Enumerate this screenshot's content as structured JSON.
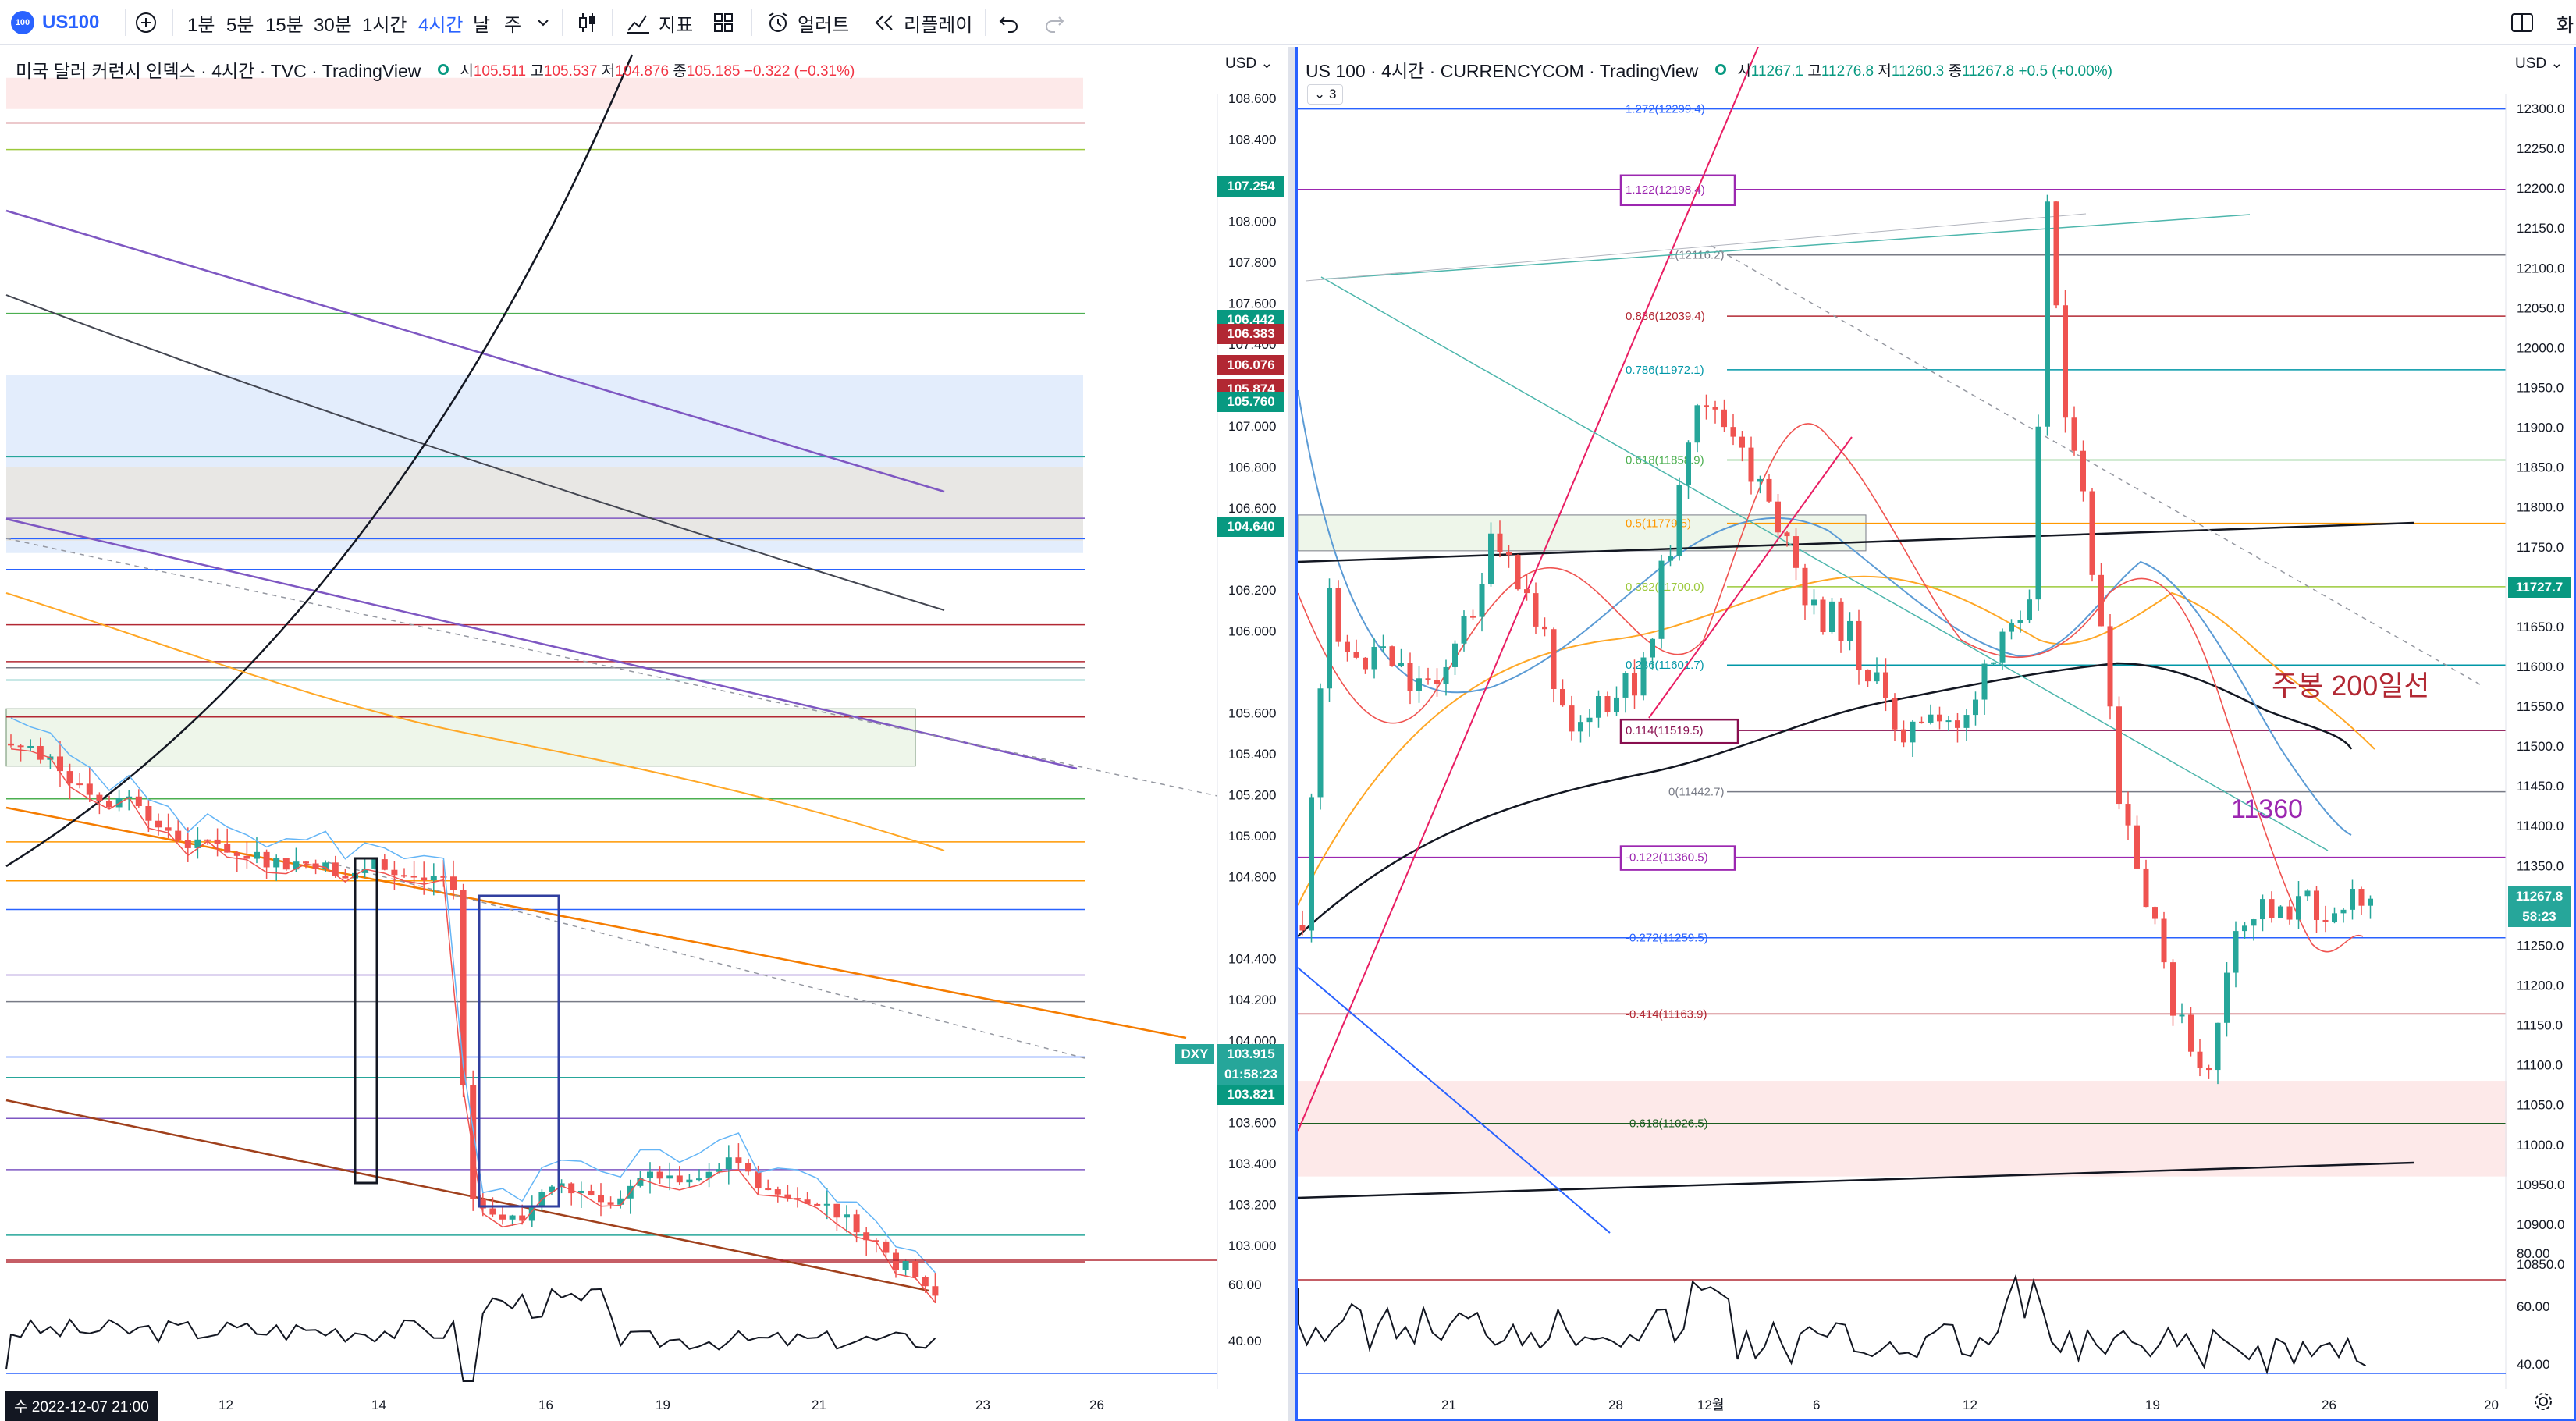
{
  "toolbar": {
    "logo_text": "100",
    "symbol": "US100",
    "intervals": [
      "1분",
      "5분",
      "15분",
      "30분",
      "1시간",
      "4시간",
      "날",
      "주"
    ],
    "active_interval": "4시간",
    "indicators_label": "지표",
    "alerts_label": "얼러트",
    "replay_label": "리플레이",
    "right_cut_label": "화"
  },
  "left_chart": {
    "title": "미국 달러 커런시 인덱스 · 4시간 · TVC · TradingView",
    "ohlc": {
      "o_label": "시",
      "o": "105.511",
      "h_label": "고",
      "h": "105.537",
      "l_label": "저",
      "l": "104.876",
      "c_label": "종",
      "c": "105.185",
      "change": "−0.322 (−0.31%)"
    },
    "currency": "USD",
    "price_ticks": [
      "108.600",
      "108.400",
      "108.200",
      "108.000",
      "107.800",
      "107.600",
      "107.400",
      "107.000",
      "106.800",
      "106.600",
      "106.200",
      "106.000",
      "105.600",
      "105.400",
      "105.200",
      "105.000",
      "104.800",
      "104.400",
      "104.200",
      "104.000",
      "103.600",
      "103.400",
      "103.200",
      "103.000"
    ],
    "price_tags": [
      {
        "value": "107.254",
        "color": "#089981"
      },
      {
        "value": "106.442",
        "color": "#089981"
      },
      {
        "value": "106.383",
        "color": "#b22833"
      },
      {
        "value": "106.076",
        "color": "#b22833"
      },
      {
        "value": "105.874",
        "color": "#b22833"
      },
      {
        "value": "105.760",
        "color": "#089981"
      },
      {
        "value": "104.640",
        "color": "#089981"
      },
      {
        "value": "103.915",
        "color": "#26a69a"
      },
      {
        "value": "01:58:23",
        "color": "#26a69a"
      },
      {
        "value": "103.821",
        "color": "#089981"
      }
    ],
    "dxy_label": "DXY",
    "osc_ticks": [
      "60.00",
      "40.00"
    ],
    "date_labels": [
      "12",
      "14",
      "16",
      "19",
      "21",
      "23",
      "26"
    ],
    "cursor_date": "수 2022-12-07  21:00"
  },
  "right_chart": {
    "title": "US 100 · 4시간 · CURRENCYCOM · TradingView",
    "ohlc": {
      "o_label": "시",
      "o": "11267.1",
      "h_label": "고",
      "h": "11276.8",
      "l_label": "저",
      "l": "11260.3",
      "c_label": "종",
      "c": "11267.8",
      "change": "+0.5 (+0.00%)"
    },
    "collapse_label": "3",
    "currency": "USD",
    "price_ticks": [
      "12300.0",
      "12250.0",
      "12200.0",
      "12150.0",
      "12100.0",
      "12050.0",
      "12000.0",
      "11950.0",
      "11900.0",
      "11850.0",
      "11800.0",
      "11750.0",
      "11700.0",
      "11650.0",
      "11600.0",
      "11550.0",
      "11500.0",
      "11450.0",
      "11400.0",
      "11350.0",
      "11300.0",
      "11250.0",
      "11200.0",
      "11150.0",
      "11100.0",
      "11050.0",
      "11000.0",
      "10950.0",
      "10900.0",
      "10850.0"
    ],
    "price_tags": [
      {
        "value": "11727.7",
        "color": "#089981"
      },
      {
        "value": "11267.8",
        "color": "#26a69a"
      },
      {
        "value": "58:23",
        "color": "#26a69a"
      }
    ],
    "fib_levels": [
      {
        "label": "1.272(12299.4)",
        "color": "#2962ff"
      },
      {
        "label": "1.122(12198.4)",
        "color": "#9c27b0"
      },
      {
        "label": "1(12116.2)",
        "color": "#787b86"
      },
      {
        "label": "0.886(12039.4)",
        "color": "#b22833"
      },
      {
        "label": "0.786(11972.1)",
        "color": "#0097a7"
      },
      {
        "label": "0.618(11858.9)",
        "color": "#4caf50"
      },
      {
        "label": "0.5(11779.5)",
        "color": "#ff9800"
      },
      {
        "label": "0.382(11700.0)",
        "color": "#9cc93b"
      },
      {
        "label": "0.236(11601.7)",
        "color": "#0097a7"
      },
      {
        "label": "0.114(11519.5)",
        "color": "#880e4f"
      },
      {
        "label": "0(11442.7)",
        "color": "#787b86"
      },
      {
        "label": "-0.122(11360.5)",
        "color": "#9c27b0"
      },
      {
        "label": "-0.272(11259.5)",
        "color": "#2962ff"
      },
      {
        "label": "-0.414(11163.9)",
        "color": "#b22833"
      },
      {
        "label": "-0.618(11026.5)",
        "color": "#1b5e20"
      }
    ],
    "annotation_200": "주봉 200일선",
    "annotation_11360": "11360",
    "osc_ticks": [
      "80.00",
      "60.00",
      "40.00"
    ],
    "date_labels": [
      "21",
      "28",
      "12월",
      "6",
      "12",
      "19",
      "26",
      "20"
    ]
  }
}
